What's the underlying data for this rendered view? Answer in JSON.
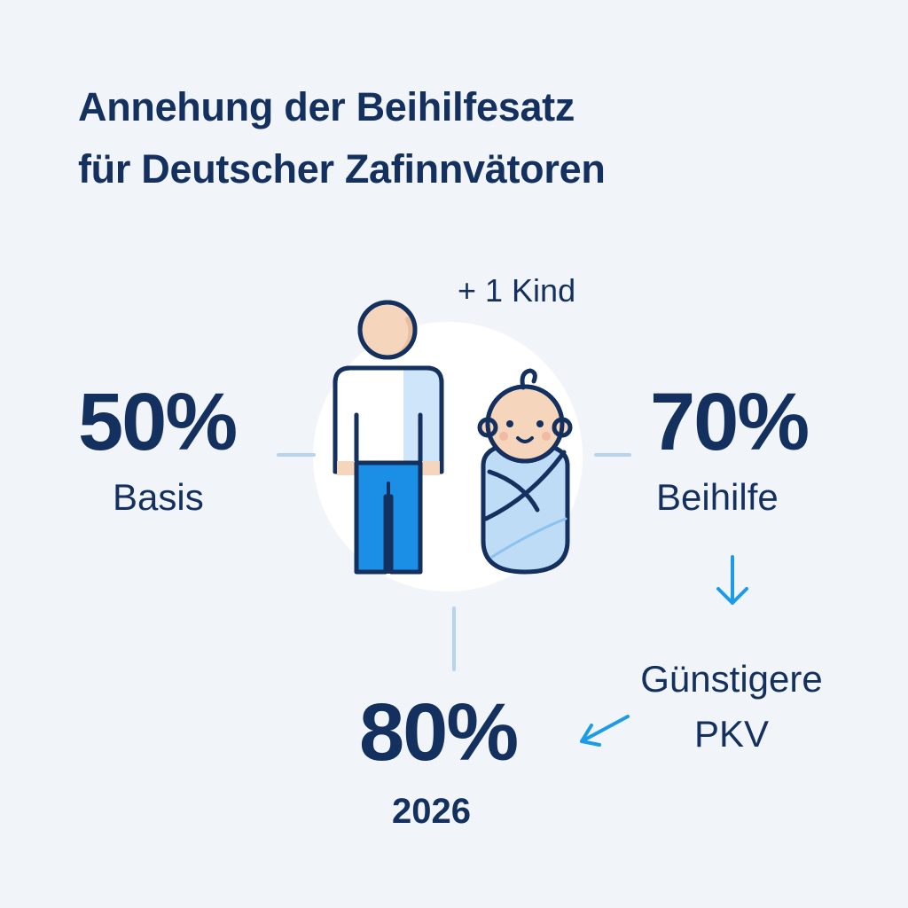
{
  "title": {
    "line1": "Annehung der Beihilfesatz",
    "line2": "für Deutscher Zafinnvätoren"
  },
  "kind_label": "+ 1 Kind",
  "basis": {
    "value": "50%",
    "label": "Basis"
  },
  "beihilfe": {
    "value": "70%",
    "label": "Beihilfe"
  },
  "pkv": {
    "line1": "Günstigere",
    "line2": "PKV"
  },
  "future": {
    "value": "80%",
    "label": "2026"
  },
  "colors": {
    "navy": "#14305e",
    "connector": "#b9d3ec",
    "arrow": "#1e9be8",
    "pants": "#1b8fe6",
    "shirt_light": "#cfe6fa",
    "skin": "#f5d5bb",
    "swaddle": "#bfdcf6",
    "background": "#f1f5fa"
  },
  "icons": [
    "father-icon",
    "baby-icon",
    "arrow-down-icon",
    "arrow-down-left-icon"
  ]
}
